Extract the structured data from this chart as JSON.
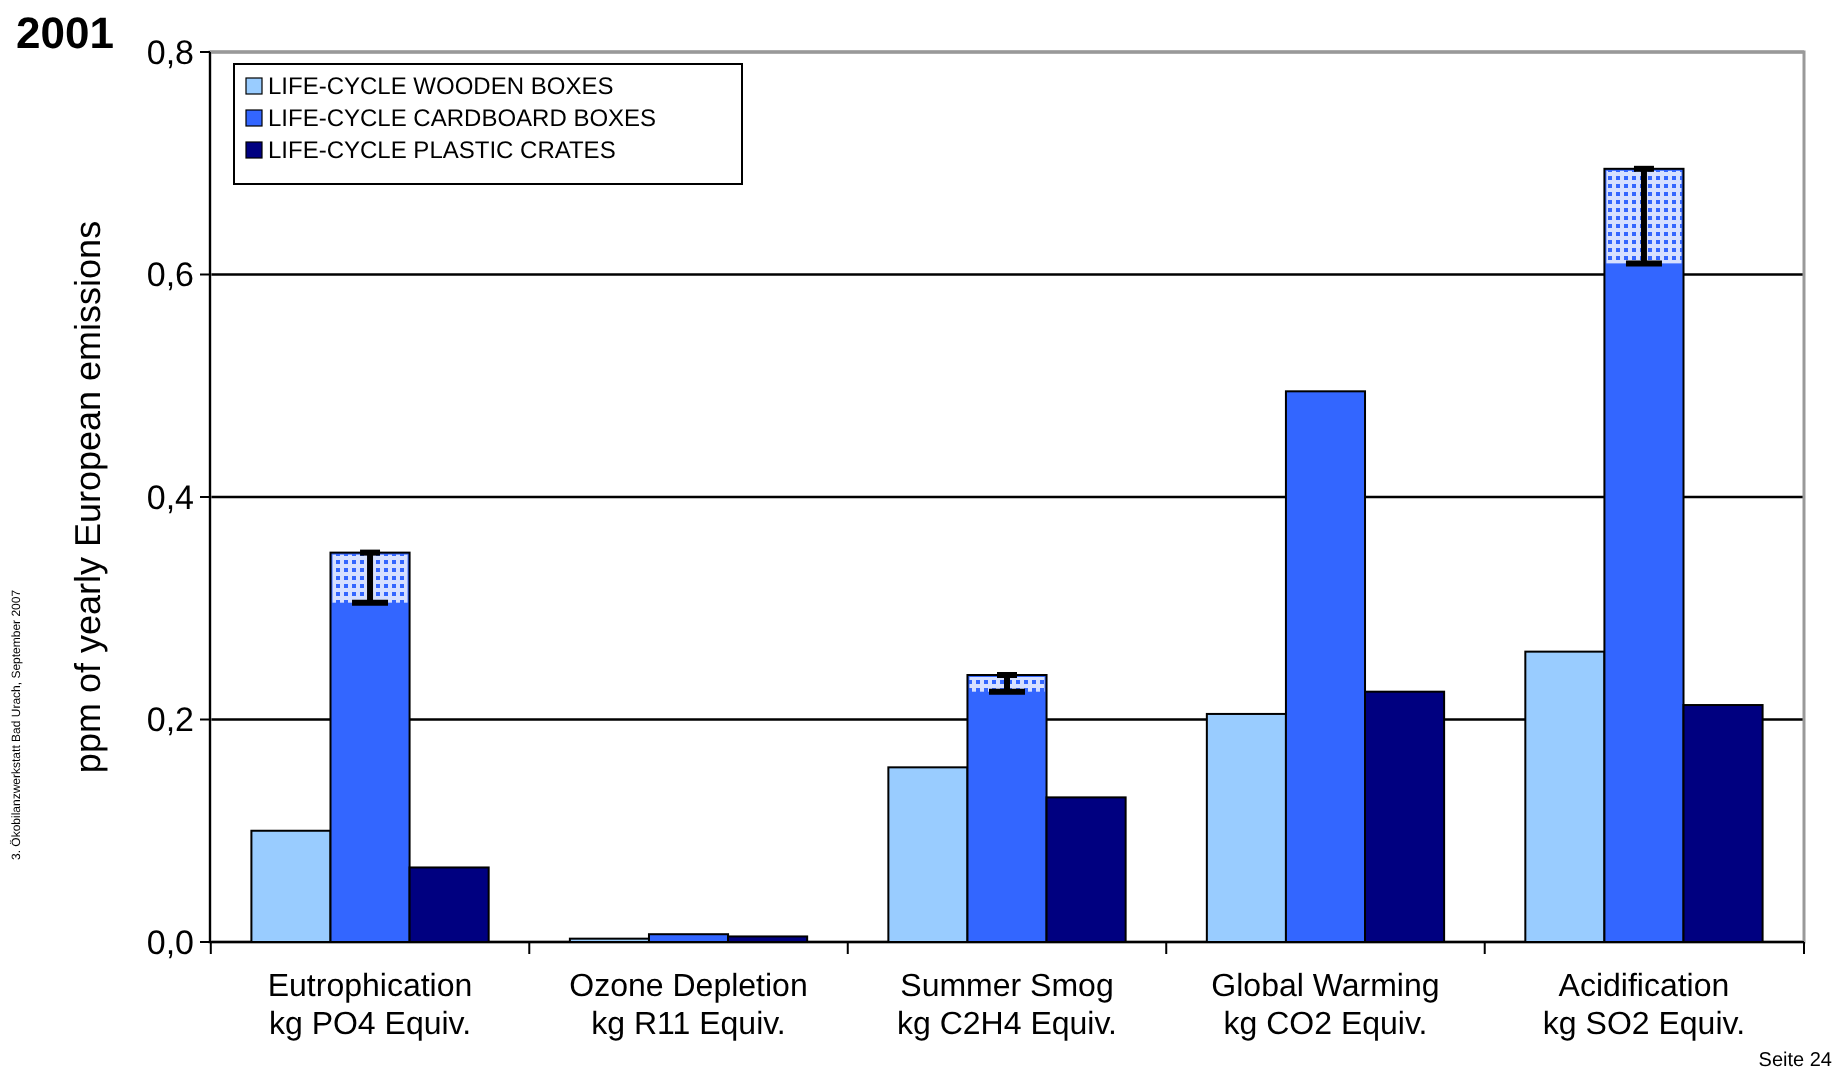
{
  "chart_data": {
    "type": "bar",
    "title": "2001",
    "ylabel": "ppm of yearly European emissions",
    "categories": [
      "Eutrophication\nkg PO4 Equiv.",
      "Ozone Depletion\nkg R11 Equiv.",
      "Summer Smog\nkg C2H4 Equiv.",
      "Global Warming\nkg CO2 Equiv.",
      "Acidification\nkg SO2 Equiv."
    ],
    "series": [
      {
        "name": "LIFE-CYCLE WOODEN BOXES",
        "color": "#99ccff",
        "values": [
          0.1,
          0.003,
          0.157,
          0.205,
          0.261
        ]
      },
      {
        "name": "LIFE-CYCLE CARDBOARD BOXES",
        "color": "#3366ff",
        "values": [
          0.35,
          0.007,
          0.24,
          0.495,
          0.695
        ],
        "errors": [
          [
            0.305,
            0.35
          ],
          null,
          [
            0.225,
            0.24
          ],
          null,
          [
            0.61,
            0.695
          ]
        ]
      },
      {
        "name": "LIFE-CYCLE PLASTIC CRATES",
        "color": "#000080",
        "values": [
          0.067,
          0.005,
          0.13,
          0.225,
          0.213
        ]
      }
    ],
    "ylim": [
      0,
      0.8
    ],
    "yticks": [
      {
        "value": 0,
        "label": "0,0"
      },
      {
        "value": 0.2,
        "label": "0,2"
      },
      {
        "value": 0.4,
        "label": "0,4"
      },
      {
        "value": 0.6,
        "label": "0,6"
      },
      {
        "value": 0.8,
        "label": "0,8"
      }
    ],
    "grid": "y",
    "legend": "top left",
    "annotations": [
      "3. Ökobilanzwerkstatt Bad Urach, September 2007",
      "Seite 24"
    ]
  }
}
